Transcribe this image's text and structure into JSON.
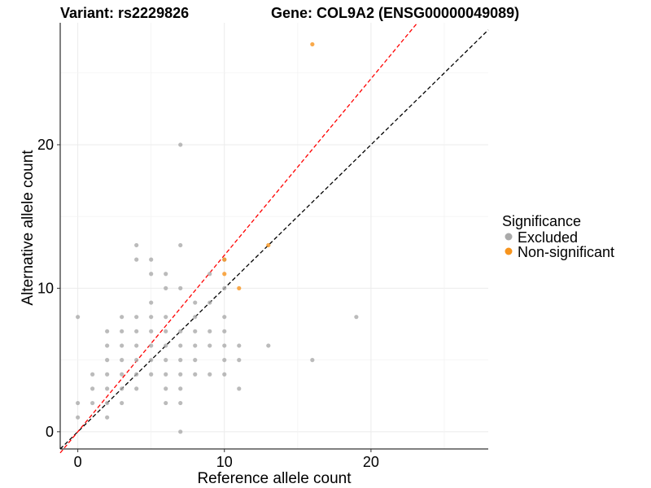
{
  "chart_data": {
    "type": "scatter",
    "title_left": "Variant: rs2229826",
    "title_right": "Gene: COL9A2 (ENSG00000049089)",
    "xlabel": "Reference allele count",
    "ylabel": "Alternative allele count",
    "xlim": [
      -1.2,
      28
    ],
    "ylim": [
      -1.2,
      28.5
    ],
    "x_ticks": [
      0,
      10,
      20
    ],
    "y_ticks": [
      0,
      10,
      20
    ],
    "grid": true,
    "legend": {
      "title": "Significance",
      "position": "right"
    },
    "reference_lines": [
      {
        "name": "identity",
        "slope": 1,
        "intercept": 0,
        "color": "#000000",
        "dash": "dashed"
      },
      {
        "name": "fit",
        "slope": 1.23,
        "intercept": 0,
        "color": "#ff0000",
        "dash": "dashed"
      }
    ],
    "series": [
      {
        "name": "Excluded",
        "color": "#aaaaaa",
        "points": [
          [
            0,
            1
          ],
          [
            0,
            2
          ],
          [
            0,
            8
          ],
          [
            1,
            2
          ],
          [
            1,
            3
          ],
          [
            1,
            4
          ],
          [
            2,
            1
          ],
          [
            2,
            2
          ],
          [
            2,
            3
          ],
          [
            2,
            4
          ],
          [
            2,
            5
          ],
          [
            2,
            6
          ],
          [
            2,
            7
          ],
          [
            3,
            2
          ],
          [
            3,
            3
          ],
          [
            3,
            4
          ],
          [
            3,
            5
          ],
          [
            3,
            6
          ],
          [
            3,
            7
          ],
          [
            3,
            8
          ],
          [
            4,
            3
          ],
          [
            4,
            4
          ],
          [
            4,
            5
          ],
          [
            4,
            6
          ],
          [
            4,
            7
          ],
          [
            4,
            8
          ],
          [
            4,
            12
          ],
          [
            4,
            13
          ],
          [
            5,
            4
          ],
          [
            5,
            5
          ],
          [
            5,
            6
          ],
          [
            5,
            7
          ],
          [
            5,
            8
          ],
          [
            5,
            9
          ],
          [
            5,
            11
          ],
          [
            5,
            12
          ],
          [
            6,
            2
          ],
          [
            6,
            3
          ],
          [
            6,
            4
          ],
          [
            6,
            5
          ],
          [
            6,
            6
          ],
          [
            6,
            7
          ],
          [
            6,
            8
          ],
          [
            6,
            10
          ],
          [
            6,
            11
          ],
          [
            7,
            0
          ],
          [
            7,
            2
          ],
          [
            7,
            3
          ],
          [
            7,
            4
          ],
          [
            7,
            5
          ],
          [
            7,
            6
          ],
          [
            7,
            7
          ],
          [
            7,
            10
          ],
          [
            7,
            13
          ],
          [
            7,
            20
          ],
          [
            8,
            4
          ],
          [
            8,
            5
          ],
          [
            8,
            6
          ],
          [
            8,
            7
          ],
          [
            8,
            8
          ],
          [
            8,
            9
          ],
          [
            9,
            4
          ],
          [
            9,
            6
          ],
          [
            9,
            7
          ],
          [
            9,
            9
          ],
          [
            9,
            11
          ],
          [
            10,
            4
          ],
          [
            10,
            5
          ],
          [
            10,
            6
          ],
          [
            10,
            7
          ],
          [
            10,
            8
          ],
          [
            10,
            10
          ],
          [
            10,
            12
          ],
          [
            11,
            3
          ],
          [
            11,
            5
          ],
          [
            11,
            6
          ],
          [
            13,
            6
          ],
          [
            16,
            5
          ],
          [
            19,
            8
          ]
        ]
      },
      {
        "name": "Non-significant",
        "color": "#f7941d",
        "points": [
          [
            10,
            12
          ],
          [
            10,
            11
          ],
          [
            11,
            10
          ],
          [
            13,
            13
          ],
          [
            16,
            27
          ]
        ]
      }
    ]
  }
}
